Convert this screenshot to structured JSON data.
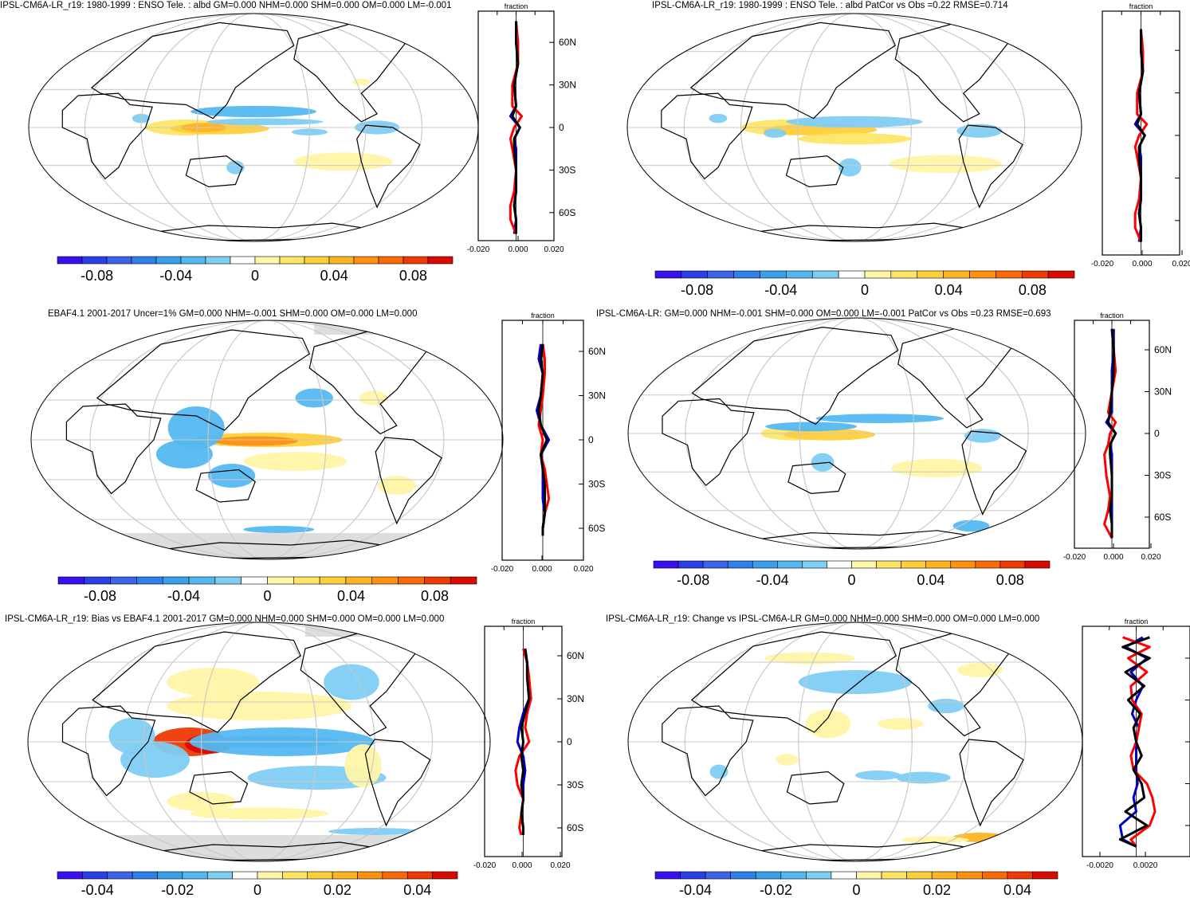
{
  "figure": {
    "background": "#ffffff",
    "land_color": "#000000",
    "antarctic_mask_color": "#dddddd",
    "colorbar_colors": [
      "#3a0ff0",
      "#2b3fe8",
      "#3c64e8",
      "#2f80e8",
      "#3aa0ec",
      "#54b8f0",
      "#7ecdf3",
      "#ffffff",
      "#fff6a8",
      "#ffe566",
      "#ffcf3a",
      "#ffb320",
      "#ff9010",
      "#f86a08",
      "#ee3a05",
      "#d90a00"
    ]
  },
  "panels": [
    {
      "title": "IPSL-CM6A-LR_r19: 1980-1999 : ENSO Tele. : albd GM=0.000 NHM=0.000 SHM=0.000 OM=0.000 LM=-0.001",
      "colorbar_labels": [
        "-0.08",
        "-0.04",
        "0",
        "0.04",
        "0.08"
      ],
      "zonal_unit": "fraction",
      "zonal_ticks": [
        "-0.020",
        "0.000",
        "0.020"
      ],
      "lat_labels": [
        "60N",
        "30N",
        "0",
        "30S",
        "60S"
      ]
    },
    {
      "title": "IPSL-CM6A-LR_r19: 1980-1999 : ENSO Tele. : albd PatCor vs Obs =0.22 RMSE=0.714",
      "colorbar_labels": [
        "-0.08",
        "-0.04",
        "0",
        "0.04",
        "0.08"
      ],
      "zonal_unit": "fraction",
      "zonal_ticks": [
        "-0.020",
        "0.000",
        "0.020"
      ],
      "lat_labels": []
    },
    {
      "title": "EBAF4.1 2001-2017 Uncer=1% GM=0.000 NHM=-0.001 SHM=0.000 OM=0.000 LM=0.000",
      "colorbar_labels": [
        "-0.08",
        "-0.04",
        "0",
        "0.04",
        "0.08"
      ],
      "zonal_unit": "fraction",
      "zonal_ticks": [
        "-0.020",
        "0.000",
        "0.020"
      ],
      "lat_labels": [
        "60N",
        "30N",
        "0",
        "30S",
        "60S"
      ]
    },
    {
      "title": "IPSL-CM6A-LR: GM=0.000 NHM=-0.001 SHM=0.000 OM=0.000 LM=-0.001 PatCor vs Obs =0.23 RMSE=0.693",
      "colorbar_labels": [
        "-0.08",
        "-0.04",
        "0",
        "0.04",
        "0.08"
      ],
      "zonal_unit": "fraction",
      "zonal_ticks": [
        "-0.020",
        "0.000",
        "0.020"
      ],
      "lat_labels": [
        "60N",
        "30N",
        "0",
        "30S",
        "60S"
      ]
    },
    {
      "title": "IPSL-CM6A-LR_r19: Bias vs EBAF4.1 2001-2017 GM=0.000 NHM=0.000 SHM=0.000 OM=0.000 LM=0.000",
      "colorbar_labels": [
        "-0.04",
        "-0.02",
        "0",
        "0.02",
        "0.04"
      ],
      "zonal_unit": "fraction",
      "zonal_ticks": [
        "-0.020",
        "0.000",
        "0.020"
      ],
      "lat_labels": [
        "60N",
        "30N",
        "0",
        "30S",
        "60S"
      ]
    },
    {
      "title": "IPSL-CM6A-LR_r19: Change vs IPSL-CM6A-LR GM=0.000 NHM=0.000 SHM=0.000 OM=0.000 LM=0.000",
      "colorbar_labels": [
        "-0.04",
        "-0.02",
        "0",
        "0.02",
        "0.04"
      ],
      "zonal_unit": "fraction",
      "zonal_ticks": [
        "-0.0020",
        "0.0020"
      ],
      "lat_labels": [
        "60N",
        "30N",
        "0",
        "30S",
        "60S"
      ]
    }
  ],
  "chart_data": [
    {
      "type": "heatmap",
      "title": "IPSL-CM6A-LR_r19: 1980-1999 : ENSO Tele. : albd GM=0.000 NHM=0.000 SHM=0.000 OM=0.000 LM=-0.001",
      "colorbar_range": [
        -0.1,
        0.1
      ],
      "colorbar_labels": [
        -0.08,
        -0.04,
        0,
        0.04,
        0.08
      ],
      "zonal_mean": {
        "xlim": [
          -0.02,
          0.02
        ],
        "xlabel": "fraction",
        "latitudes": [
          75,
          60,
          45,
          30,
          15,
          8,
          0,
          -8,
          -15,
          -30,
          -45,
          -55,
          -65,
          -75
        ],
        "series": [
          {
            "color": "#0000cc",
            "values": [
              0.0,
              0.0,
              0.001,
              -0.001,
              0.0,
              -0.003,
              0.002,
              -0.001,
              0.0,
              0.0,
              0.0,
              -0.001,
              0.0,
              -0.001
            ]
          },
          {
            "color": "#ff0000",
            "values": [
              0.0,
              0.001,
              0.001,
              -0.002,
              -0.002,
              0.003,
              -0.001,
              -0.003,
              -0.002,
              0.0,
              -0.001,
              -0.003,
              -0.003,
              0.0
            ]
          },
          {
            "color": "#000000",
            "values": [
              0.0,
              0.0,
              0.001,
              -0.001,
              0.0,
              -0.002,
              0.002,
              -0.001,
              -0.001,
              0.0,
              0.0,
              -0.001,
              0.0,
              0.0
            ]
          }
        ]
      }
    },
    {
      "type": "heatmap",
      "title": "IPSL-CM6A-LR_r19: 1980-1999 : ENSO Tele. : albd PatCor vs Obs =0.22 RMSE=0.714",
      "colorbar_range": [
        -0.1,
        0.1
      ],
      "colorbar_labels": [
        -0.08,
        -0.04,
        0,
        0.04,
        0.08
      ],
      "zonal_mean": {
        "xlim": [
          -0.02,
          0.02
        ],
        "xlabel": "fraction",
        "latitudes": [
          75,
          60,
          45,
          30,
          15,
          8,
          0,
          -8,
          -15,
          -30,
          -45,
          -55,
          -65,
          -75
        ],
        "series": [
          {
            "color": "#0000cc",
            "values": [
              0.0,
              0.0,
              0.001,
              -0.001,
              0.0,
              -0.003,
              0.002,
              -0.001,
              0.0,
              0.0,
              0.0,
              -0.001,
              0.0,
              -0.001
            ]
          },
          {
            "color": "#ff0000",
            "values": [
              0.0,
              0.001,
              0.001,
              -0.002,
              -0.002,
              0.003,
              -0.001,
              -0.003,
              -0.002,
              0.0,
              -0.001,
              -0.003,
              -0.003,
              0.0
            ]
          },
          {
            "color": "#000000",
            "values": [
              0.0,
              0.0,
              0.001,
              -0.001,
              0.0,
              -0.002,
              0.002,
              -0.001,
              -0.001,
              0.0,
              0.0,
              -0.001,
              0.0,
              0.0
            ]
          }
        ]
      }
    },
    {
      "type": "heatmap",
      "title": "EBAF4.1 2001-2017 Uncer=1% GM=0.000 NHM=-0.001 SHM=0.000 OM=0.000 LM=0.000",
      "colorbar_range": [
        -0.1,
        0.1
      ],
      "colorbar_labels": [
        -0.08,
        -0.04,
        0,
        0.04,
        0.08
      ],
      "zonal_mean": {
        "xlim": [
          -0.02,
          0.02
        ],
        "xlabel": "fraction",
        "latitudes": [
          65,
          55,
          45,
          30,
          20,
          10,
          0,
          -10,
          -20,
          -30,
          -40,
          -50,
          -60,
          -65
        ],
        "series": [
          {
            "color": "#0000cc",
            "values": [
              -0.001,
              -0.002,
              0.0,
              -0.001,
              -0.003,
              -0.001,
              0.003,
              -0.001,
              0.0,
              0.0,
              0.0,
              0.001,
              0.0,
              0.0
            ]
          },
          {
            "color": "#ff0000",
            "values": [
              0.0,
              0.001,
              0.001,
              0.0,
              -0.001,
              -0.002,
              0.0,
              -0.001,
              0.001,
              0.002,
              0.003,
              0.001,
              0.0,
              0.0
            ]
          },
          {
            "color": "#000000",
            "values": [
              0.0,
              -0.001,
              0.0,
              -0.001,
              -0.002,
              -0.001,
              0.002,
              -0.001,
              0.0,
              0.001,
              0.001,
              0.001,
              0.0,
              0.0
            ]
          }
        ]
      }
    },
    {
      "type": "heatmap",
      "title": "IPSL-CM6A-LR: GM=0.000 NHM=-0.001 SHM=0.000 OM=0.000 LM=-0.001 PatCor vs Obs =0.23 RMSE=0.693",
      "colorbar_range": [
        -0.1,
        0.1
      ],
      "colorbar_labels": [
        -0.08,
        -0.04,
        0,
        0.04,
        0.08
      ],
      "zonal_mean": {
        "xlim": [
          -0.02,
          0.02
        ],
        "xlabel": "fraction",
        "latitudes": [
          75,
          60,
          45,
          30,
          15,
          8,
          0,
          -8,
          -15,
          -30,
          -45,
          -55,
          -65,
          -75
        ],
        "series": [
          {
            "color": "#0000cc",
            "values": [
              0.001,
              0.001,
              0.0,
              0.0,
              0.0,
              -0.003,
              0.002,
              -0.001,
              0.0,
              0.0,
              0.0,
              0.0,
              0.0,
              0.0
            ]
          },
          {
            "color": "#ff0000",
            "values": [
              0.0,
              0.001,
              0.002,
              0.0,
              -0.002,
              0.002,
              -0.001,
              -0.002,
              -0.004,
              -0.003,
              -0.001,
              -0.002,
              -0.004,
              0.0
            ]
          },
          {
            "color": "#000000",
            "values": [
              0.0,
              0.001,
              0.001,
              0.0,
              -0.001,
              -0.002,
              0.002,
              -0.001,
              -0.001,
              0.0,
              0.0,
              -0.001,
              0.0,
              0.0
            ]
          }
        ]
      }
    },
    {
      "type": "heatmap",
      "title": "IPSL-CM6A-LR_r19: Bias vs EBAF4.1 2001-2017 GM=0.000 NHM=0.000 SHM=0.000 OM=0.000 LM=0.000",
      "colorbar_range": [
        -0.05,
        0.05
      ],
      "colorbar_labels": [
        -0.04,
        -0.02,
        0,
        0.02,
        0.04
      ],
      "zonal_mean": {
        "xlim": [
          -0.02,
          0.02
        ],
        "xlabel": "fraction",
        "latitudes": [
          65,
          55,
          45,
          30,
          20,
          10,
          0,
          -10,
          -20,
          -30,
          -40,
          -50,
          -60,
          -65
        ],
        "series": [
          {
            "color": "#0000cc",
            "values": [
              0.001,
              0.002,
              0.002,
              0.003,
              0.0,
              -0.002,
              -0.003,
              0.0,
              0.001,
              0.0,
              0.0,
              -0.001,
              0.0,
              0.0
            ]
          },
          {
            "color": "#ff0000",
            "values": [
              0.0,
              0.002,
              0.003,
              0.004,
              0.002,
              0.001,
              0.003,
              -0.002,
              -0.004,
              -0.003,
              0.0,
              -0.001,
              -0.002,
              -0.001
            ]
          },
          {
            "color": "#000000",
            "values": [
              0.001,
              0.002,
              0.002,
              0.003,
              0.001,
              -0.001,
              0.0,
              -0.001,
              0.0,
              -0.001,
              0.0,
              -0.001,
              0.0,
              0.0
            ]
          }
        ]
      }
    },
    {
      "type": "heatmap",
      "title": "IPSL-CM6A-LR_r19: Change vs IPSL-CM6A-LR GM=0.000 NHM=0.000 SHM=0.000 OM=0.000 LM=0.000",
      "colorbar_range": [
        -0.05,
        0.05
      ],
      "colorbar_labels": [
        -0.04,
        -0.02,
        0,
        0.02,
        0.04
      ],
      "zonal_mean": {
        "xlim": [
          -0.004,
          0.004
        ],
        "xlabel": "fraction",
        "latitudes": [
          75,
          68,
          60,
          50,
          40,
          30,
          20,
          10,
          0,
          -10,
          -20,
          -30,
          -40,
          -50,
          -60,
          -70,
          -75
        ],
        "series": [
          {
            "color": "#0000cc",
            "values": [
              0.0005,
              -0.0008,
              0.0008,
              -0.0004,
              0.0005,
              0.0,
              -0.0003,
              0.0002,
              0.0,
              0.0,
              0.0,
              0.0001,
              -0.0002,
              0.0,
              -0.0012,
              -0.001,
              0.0
            ]
          },
          {
            "color": "#ff0000",
            "values": [
              -0.001,
              0.001,
              -0.0006,
              0.0008,
              -0.0004,
              -0.0003,
              0.0004,
              0.0002,
              0.0,
              -0.0004,
              -0.0002,
              0.0008,
              0.0012,
              0.0014,
              0.001,
              -0.0004,
              0.0
            ]
          },
          {
            "color": "#000000",
            "values": [
              0.001,
              -0.001,
              0.001,
              -0.0008,
              0.0006,
              -0.0006,
              0.0003,
              -0.0002,
              0.0,
              0.0004,
              -0.0002,
              0.0004,
              0.0006,
              -0.0008,
              0.0008,
              -0.0012,
              0.0
            ]
          }
        ]
      }
    }
  ]
}
